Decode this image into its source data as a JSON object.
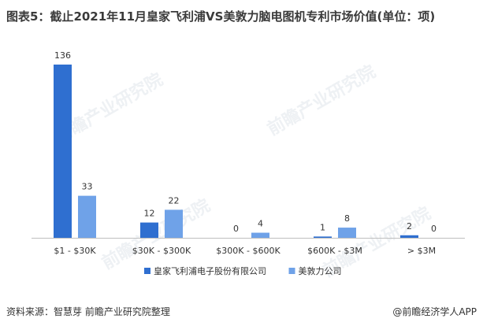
{
  "title": "图表5：截止2021年11月皇家飞利浦VS美敦力脑电图机专利市场价值(单位：项)",
  "footer": {
    "source": "资料来源：智慧芽 前瞻产业研究院整理",
    "brand": "@前瞻经济学人APP"
  },
  "watermark": "前瞻产业研究院",
  "colors": {
    "philips": "#2f6fd0",
    "medtronic": "#6fa2e8",
    "axis": "#bfbfbf"
  },
  "chart_data": {
    "type": "bar",
    "title": "图表5：截止2021年11月皇家飞利浦VS美敦力脑电图机专利市场价值(单位：项)",
    "categories": [
      "$1 - $30K",
      "$30K - $300K",
      "$300K - $600K",
      "$600K - $3M",
      "> $3M"
    ],
    "series": [
      {
        "name": "皇家飞利浦电子股份有限公司",
        "values": [
          136,
          12,
          0,
          1,
          2
        ]
      },
      {
        "name": "美敦力公司",
        "values": [
          33,
          22,
          4,
          8,
          0
        ]
      }
    ],
    "ylim": [
      0,
      140
    ],
    "grid": false,
    "legend_position": "bottom"
  }
}
